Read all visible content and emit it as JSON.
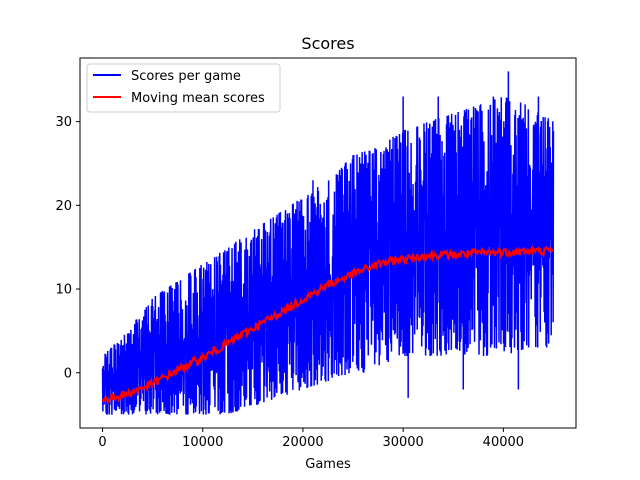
{
  "chart_data": {
    "type": "line",
    "title": "Scores",
    "xlabel": "Games",
    "ylabel": "",
    "xlim": [
      -2250,
      47250
    ],
    "ylim": [
      -6.6,
      37.6
    ],
    "xticks": [
      0,
      10000,
      20000,
      30000,
      40000
    ],
    "xtick_labels": [
      "0",
      "10000",
      "20000",
      "30000",
      "40000"
    ],
    "yticks": [
      0,
      10,
      20,
      30
    ],
    "ytick_labels": [
      "0",
      "10",
      "20",
      "30"
    ],
    "grid": false,
    "legend_position": "upper-left",
    "series": [
      {
        "name": "Scores per game",
        "color": "#0000ff",
        "style": "noisy envelope",
        "x": [
          0,
          2500,
          5000,
          7500,
          10000,
          12500,
          15000,
          17500,
          20000,
          22500,
          25000,
          27500,
          30000,
          32500,
          35000,
          37500,
          40000,
          42500,
          45000
        ],
        "upper": [
          2,
          5,
          9,
          11,
          13,
          15,
          17,
          19,
          21,
          23,
          26,
          27,
          29,
          30,
          31,
          32,
          33,
          32,
          30
        ],
        "lower": [
          -5,
          -5,
          -5,
          -5,
          -5,
          -5,
          -4,
          -3,
          -2,
          -1,
          0,
          0,
          2,
          2,
          2,
          2,
          2,
          3,
          3
        ],
        "peaks": [
          {
            "x": 40500,
            "y": 36
          },
          {
            "x": 30000,
            "y": 33
          },
          {
            "x": 33500,
            "y": 33
          },
          {
            "x": 39000,
            "y": 33
          },
          {
            "x": 43500,
            "y": 33
          },
          {
            "x": 21000,
            "y": 23
          },
          {
            "x": 25000,
            "y": 26
          },
          {
            "x": 30500,
            "y": -3
          },
          {
            "x": 36000,
            "y": -2
          },
          {
            "x": 41500,
            "y": -2
          }
        ]
      },
      {
        "name": "Moving mean scores",
        "color": "#ff0000",
        "style": "line",
        "x": [
          0,
          2500,
          5000,
          7500,
          10000,
          12500,
          15000,
          17500,
          20000,
          22500,
          25000,
          27500,
          30000,
          32500,
          35000,
          37500,
          40000,
          42500,
          45000
        ],
        "values": [
          -3.3,
          -2.5,
          -1.3,
          0.3,
          1.8,
          3.5,
          5.3,
          7.0,
          8.8,
          10.5,
          11.8,
          13.0,
          13.6,
          14.0,
          14.1,
          14.3,
          14.4,
          14.5,
          14.6
        ]
      }
    ]
  }
}
